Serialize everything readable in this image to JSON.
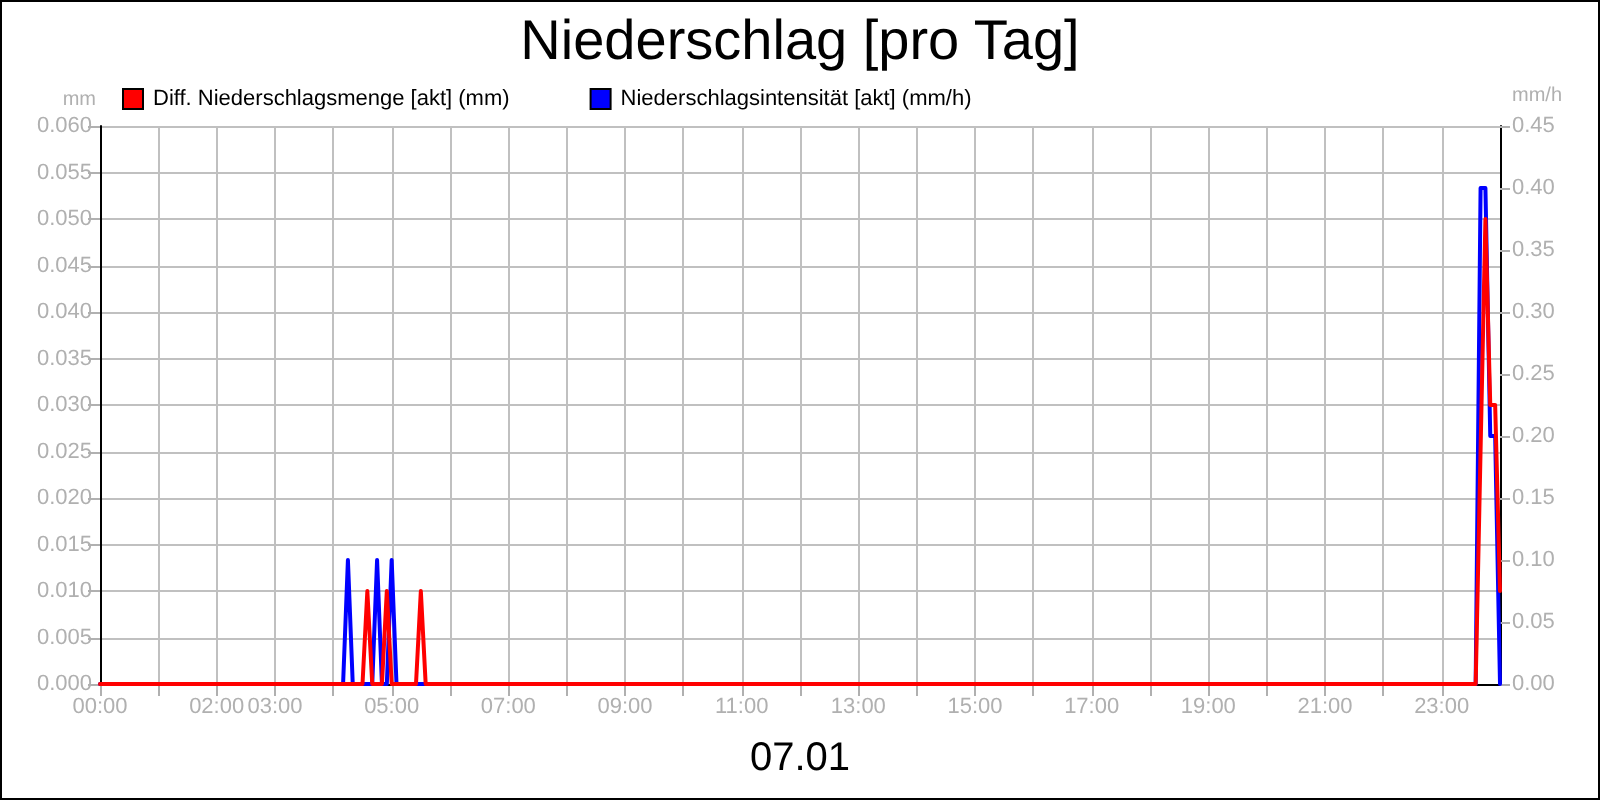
{
  "chart_data": {
    "type": "line",
    "title": "Niederschlag [pro Tag]",
    "xlabel": "07.01",
    "ylabel": "mm",
    "y2label": "mm/h",
    "xlim": [
      0,
      24
    ],
    "xticks": [
      {
        "value": 0,
        "label": "00:00"
      },
      {
        "value": 1,
        "label": null
      },
      {
        "value": 2,
        "label": "02:00"
      },
      {
        "value": 3,
        "label": "03:00"
      },
      {
        "value": 4,
        "label": null
      },
      {
        "value": 5,
        "label": "05:00"
      },
      {
        "value": 6,
        "label": null
      },
      {
        "value": 7,
        "label": "07:00"
      },
      {
        "value": 8,
        "label": null
      },
      {
        "value": 9,
        "label": "09:00"
      },
      {
        "value": 10,
        "label": null
      },
      {
        "value": 11,
        "label": "11:00"
      },
      {
        "value": 12,
        "label": null
      },
      {
        "value": 13,
        "label": "13:00"
      },
      {
        "value": 14,
        "label": null
      },
      {
        "value": 15,
        "label": "15:00"
      },
      {
        "value": 16,
        "label": null
      },
      {
        "value": 17,
        "label": "17:00"
      },
      {
        "value": 18,
        "label": null
      },
      {
        "value": 19,
        "label": "19:00"
      },
      {
        "value": 20,
        "label": null
      },
      {
        "value": 21,
        "label": "21:00"
      },
      {
        "value": 22,
        "label": null
      },
      {
        "value": 23,
        "label": "23:00"
      }
    ],
    "ylim": [
      0,
      0.06
    ],
    "yticks": [
      {
        "value": 0,
        "label": "0.000"
      },
      {
        "value": 0.005,
        "label": "0.005"
      },
      {
        "value": 0.01,
        "label": "0.010"
      },
      {
        "value": 0.015,
        "label": "0.015"
      },
      {
        "value": 0.02,
        "label": "0.020"
      },
      {
        "value": 0.025,
        "label": "0.025"
      },
      {
        "value": 0.03,
        "label": "0.030"
      },
      {
        "value": 0.035,
        "label": "0.035"
      },
      {
        "value": 0.04,
        "label": "0.040"
      },
      {
        "value": 0.045,
        "label": "0.045"
      },
      {
        "value": 0.05,
        "label": "0.050"
      },
      {
        "value": 0.055,
        "label": "0.055"
      },
      {
        "value": 0.06,
        "label": "0.060"
      }
    ],
    "y2lim": [
      0,
      0.45
    ],
    "y2ticks": [
      {
        "value": 0,
        "label": "0.00"
      },
      {
        "value": 0.05,
        "label": "0.05"
      },
      {
        "value": 0.1,
        "label": "0.10"
      },
      {
        "value": 0.15,
        "label": "0.15"
      },
      {
        "value": 0.2,
        "label": "0.20"
      },
      {
        "value": 0.25,
        "label": "0.25"
      },
      {
        "value": 0.3,
        "label": "0.30"
      },
      {
        "value": 0.35,
        "label": "0.35"
      },
      {
        "value": 0.4,
        "label": "0.40"
      },
      {
        "value": 0.45,
        "label": "0.45"
      }
    ],
    "series": [
      {
        "name": "Diff. Niederschlagsmenge [akt] (mm)",
        "color": "#ff0000",
        "x": [
          0,
          4.5,
          4.583,
          4.667,
          4.833,
          4.917,
          5.0,
          5.417,
          5.5,
          5.583,
          23.583,
          23.75,
          23.833,
          23.917,
          24
        ],
        "values": [
          0,
          0,
          0.01,
          0,
          0,
          0.01,
          0,
          0,
          0.01,
          0,
          0,
          0.05,
          0.03,
          0.03,
          0.01
        ]
      },
      {
        "name": "Niederschlagsintensität [akt] (mm/h)",
        "color": "#0000ff",
        "axis": "y2",
        "x": [
          0,
          4.167,
          4.25,
          4.333,
          4.667,
          4.75,
          4.833,
          4.917,
          5.0,
          5.083,
          23.583,
          23.667,
          23.75,
          23.833,
          23.917,
          24
        ],
        "values": [
          0,
          0,
          0.1,
          0,
          0,
          0.1,
          0,
          0,
          0.1,
          0,
          0,
          0.4,
          0.4,
          0.2,
          0.2,
          0
        ]
      }
    ],
    "grid": true,
    "legend": "top left",
    "marker": "none",
    "line_style": "solid"
  }
}
